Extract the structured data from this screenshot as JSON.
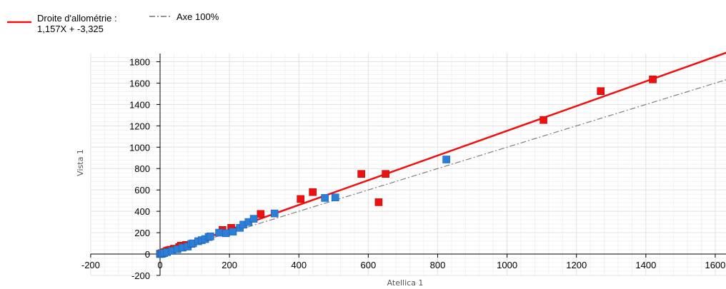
{
  "legend": {
    "fit_label_line1": "Droite d'allométrie :",
    "fit_label_line2": "1,157X + -3,325",
    "identity_label": "Axe 100%"
  },
  "colors": {
    "fit_line": "#ee1111",
    "identity_line": "#7f7f7f",
    "series_a": "#ee1111",
    "series_b": "#2b7fd9",
    "grid": "#e3e3e3",
    "axis": "#000000"
  },
  "chart_data": {
    "type": "scatter",
    "xlabel": "Atellica 1",
    "ylabel": "Vista 1",
    "xlim": [
      -200,
      1600
    ],
    "ylim": [
      -200,
      1800
    ],
    "x_ticks": [
      -200,
      0,
      200,
      400,
      600,
      800,
      1000,
      1200,
      1400,
      1600
    ],
    "y_ticks": [
      -200,
      0,
      200,
      400,
      600,
      800,
      1000,
      1200,
      1400,
      1600,
      1800
    ],
    "x_tick_labels": [
      "-200",
      "0",
      "200",
      "400",
      "600",
      "800",
      "1000",
      "1200",
      "1400",
      "1600"
    ],
    "y_tick_labels": [
      "-200",
      "0",
      "200",
      "400",
      "600",
      "800",
      "1000",
      "1200",
      "1400",
      "1600",
      "1800"
    ],
    "grid": true,
    "legend_position": "top-left",
    "fit_line": {
      "slope": 1.157,
      "intercept": -3.325
    },
    "identity_line": {
      "slope": 1,
      "intercept": 0
    },
    "series": [
      {
        "color": "#ee1111",
        "points": [
          [
            0,
            3
          ],
          [
            5,
            8
          ],
          [
            10,
            15
          ],
          [
            15,
            20
          ],
          [
            20,
            30
          ],
          [
            25,
            35
          ],
          [
            30,
            40
          ],
          [
            40,
            50
          ],
          [
            55,
            65
          ],
          [
            60,
            78
          ],
          [
            75,
            85
          ],
          [
            180,
            225
          ],
          [
            205,
            245
          ],
          [
            290,
            375
          ],
          [
            405,
            515
          ],
          [
            440,
            580
          ],
          [
            580,
            750
          ],
          [
            650,
            750
          ],
          [
            630,
            485
          ],
          [
            1105,
            1255
          ],
          [
            1270,
            1525
          ],
          [
            1420,
            1635
          ]
        ]
      },
      {
        "color": "#2b7fd9",
        "points": [
          [
            0,
            0
          ],
          [
            2,
            2
          ],
          [
            5,
            3
          ],
          [
            8,
            6
          ],
          [
            12,
            10
          ],
          [
            20,
            18
          ],
          [
            35,
            30
          ],
          [
            50,
            45
          ],
          [
            65,
            60
          ],
          [
            80,
            70
          ],
          [
            90,
            95
          ],
          [
            95,
            100
          ],
          [
            110,
            120
          ],
          [
            120,
            130
          ],
          [
            130,
            140
          ],
          [
            140,
            160
          ],
          [
            145,
            165
          ],
          [
            170,
            200
          ],
          [
            190,
            195
          ],
          [
            210,
            210
          ],
          [
            230,
            245
          ],
          [
            240,
            275
          ],
          [
            255,
            300
          ],
          [
            270,
            330
          ],
          [
            330,
            380
          ],
          [
            475,
            525
          ],
          [
            505,
            530
          ],
          [
            825,
            885
          ]
        ]
      }
    ]
  }
}
